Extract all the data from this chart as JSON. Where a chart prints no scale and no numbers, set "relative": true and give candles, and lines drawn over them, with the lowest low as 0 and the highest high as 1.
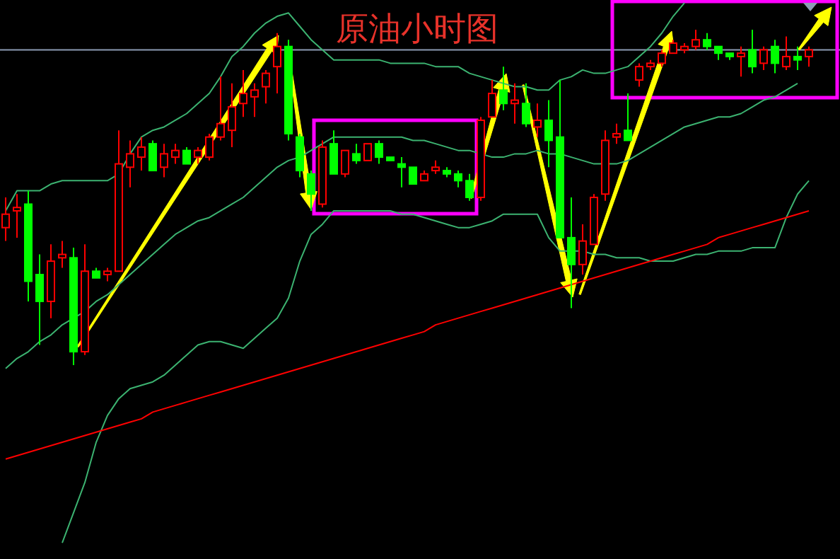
{
  "chart_data": {
    "type": "candlestick",
    "title": "原油小时图",
    "relative": true,
    "categories": [
      null,
      null,
      null,
      null,
      null,
      null,
      null,
      null,
      null,
      null,
      null,
      null,
      null,
      null,
      null,
      null,
      null,
      null,
      null,
      null,
      null,
      null,
      null,
      null,
      null,
      null,
      null,
      null,
      null,
      null,
      null,
      null,
      null,
      null,
      null,
      null,
      null,
      null,
      null,
      null,
      null,
      null,
      null,
      null,
      null,
      null,
      null,
      null,
      null,
      null,
      null,
      null,
      null,
      null,
      null,
      null,
      null,
      null,
      null,
      null,
      null,
      null,
      null,
      null,
      null,
      null,
      null,
      null,
      null,
      null,
      null,
      null
    ],
    "ohlc": [
      [
        0.41,
        0.5,
        0.37,
        0.45
      ],
      [
        0.46,
        0.51,
        0.38,
        0.47
      ],
      [
        0.48,
        0.52,
        0.19,
        0.25
      ],
      [
        0.27,
        0.33,
        0.06,
        0.19
      ],
      [
        0.19,
        0.36,
        0.14,
        0.31
      ],
      [
        0.32,
        0.37,
        0.29,
        0.33
      ],
      [
        0.32,
        0.35,
        0,
        0.04
      ],
      [
        0.04,
        0.36,
        0.03,
        0.28
      ],
      [
        0.28,
        0.29,
        0.26,
        0.26
      ],
      [
        0.27,
        0.29,
        0.25,
        0.28
      ],
      [
        0.28,
        0.7,
        0.28,
        0.6
      ],
      [
        0.59,
        0.67,
        0.53,
        0.63
      ],
      [
        0.62,
        0.68,
        0.58,
        0.65
      ],
      [
        0.66,
        0.67,
        0.58,
        0.58
      ],
      [
        0.59,
        0.66,
        0.56,
        0.63
      ],
      [
        0.62,
        0.66,
        0.6,
        0.64
      ],
      [
        0.64,
        0.65,
        0.6,
        0.6
      ],
      [
        0.62,
        0.65,
        0.6,
        0.64
      ],
      [
        0.62,
        0.69,
        0.61,
        0.68
      ],
      [
        0.68,
        0.86,
        0.67,
        0.72
      ],
      [
        0.7,
        0.84,
        0.65,
        0.77
      ],
      [
        0.78,
        0.88,
        0.74,
        0.81
      ],
      [
        0.8,
        0.84,
        0.74,
        0.82
      ],
      [
        0.83,
        0.88,
        0.78,
        0.87
      ],
      [
        0.89,
        0.99,
        0.81,
        0.95
      ],
      [
        0.95,
        0.97,
        0.67,
        0.69
      ],
      [
        0.68,
        0.69,
        0.56,
        0.58
      ],
      [
        0.57,
        0.58,
        0.46,
        0.51
      ],
      [
        0.48,
        0.67,
        0.47,
        0.65
      ],
      [
        0.66,
        0.7,
        0.57,
        0.57
      ],
      [
        0.57,
        0.64,
        0.56,
        0.64
      ],
      [
        0.63,
        0.66,
        0.6,
        0.61
      ],
      [
        0.61,
        0.66,
        0.61,
        0.66
      ],
      [
        0.66,
        0.67,
        0.6,
        0.62
      ],
      [
        0.62,
        0.62,
        0.61,
        0.61
      ],
      [
        0.6,
        0.62,
        0.53,
        0.59
      ],
      [
        0.59,
        0.59,
        0.54,
        0.54
      ],
      [
        0.55,
        0.58,
        0.55,
        0.57
      ],
      [
        0.58,
        0.61,
        0.57,
        0.59
      ],
      [
        0.58,
        0.59,
        0.56,
        0.57
      ],
      [
        0.57,
        0.58,
        0.53,
        0.55
      ],
      [
        0.55,
        0.57,
        0.49,
        0.5
      ],
      [
        0.5,
        0.74,
        0.49,
        0.73
      ],
      [
        0.74,
        0.85,
        0.74,
        0.81
      ],
      [
        0.82,
        0.89,
        0.76,
        0.78
      ],
      [
        0.78,
        0.84,
        0.72,
        0.79
      ],
      [
        0.78,
        0.84,
        0.71,
        0.72
      ],
      [
        0.71,
        0.78,
        0.68,
        0.73
      ],
      [
        0.73,
        0.79,
        0.59,
        0.67
      ],
      [
        0.68,
        0.85,
        0.38,
        0.38
      ],
      [
        0.38,
        0.5,
        0.17,
        0.3
      ],
      [
        0.3,
        0.42,
        0.27,
        0.37
      ],
      [
        0.36,
        0.51,
        0.36,
        0.5
      ],
      [
        0.51,
        0.7,
        0.49,
        0.67
      ],
      [
        0.68,
        0.72,
        0.66,
        0.69
      ],
      [
        0.7,
        0.81,
        0.67,
        0.67
      ],
      [
        0.85,
        0.9,
        0.83,
        0.89
      ],
      [
        0.89,
        0.91,
        0.88,
        0.9
      ],
      [
        0.9,
        0.94,
        0.89,
        0.93
      ],
      [
        0.93,
        0.97,
        0.93,
        0.96
      ],
      [
        0.94,
        0.96,
        0.93,
        0.95
      ],
      [
        0.95,
        1,
        0.94,
        0.97
      ],
      [
        0.97,
        0.99,
        0.94,
        0.95
      ],
      [
        0.95,
        0.95,
        0.91,
        0.93
      ],
      [
        0.93,
        0.93,
        0.91,
        0.92
      ],
      [
        0.92,
        0.95,
        0.86,
        0.93
      ],
      [
        0.94,
        1,
        0.87,
        0.89
      ],
      [
        0.9,
        0.95,
        0.88,
        0.94
      ],
      [
        0.95,
        0.97,
        0.87,
        0.9
      ],
      [
        0.89,
        0.98,
        0.88,
        0.92
      ],
      [
        0.92,
        0.95,
        0.88,
        0.91
      ],
      [
        0.92,
        0.95,
        0.89,
        0.94
      ]
    ],
    "colors": [
      "#ff0000",
      "#ff0000",
      "#00ff00",
      "#00ff00",
      "#ff0000",
      "#ff0000",
      "#00ff00",
      "#ff0000",
      "#00ff00",
      "#ff0000",
      "#ff0000",
      "#ff0000",
      "#ff0000",
      "#00ff00",
      "#ff0000",
      "#ff0000",
      "#00ff00",
      "#ff0000",
      "#ff0000",
      "#ff0000",
      "#ff0000",
      "#ff0000",
      "#ff0000",
      "#ff0000",
      "#ff0000",
      "#00ff00",
      "#00ff00",
      "#00ff00",
      "#ff0000",
      "#00ff00",
      "#ff0000",
      "#00ff00",
      "#ff0000",
      "#00ff00",
      "#00ff00",
      "#00ff00",
      "#00ff00",
      "#ff0000",
      "#ff0000",
      "#00ff00",
      "#00ff00",
      "#00ff00",
      "#ff0000",
      "#ff0000",
      "#00ff00",
      "#ff0000",
      "#00ff00",
      "#ff0000",
      "#00ff00",
      "#00ff00",
      "#00ff00",
      "#ff0000",
      "#ff0000",
      "#ff0000",
      "#ff0000",
      "#00ff00",
      "#ff0000",
      "#ff0000",
      "#ff0000",
      "#ff0000",
      "#ff0000",
      "#ff0000",
      "#00ff00",
      "#00ff00",
      "#00ff00",
      "#ff0000",
      "#00ff00",
      "#ff0000",
      "#00ff00",
      "#ff0000",
      "#00ff00",
      "#ff0000"
    ],
    "series": [
      {
        "type": "line",
        "color": "#3cb371",
        "values": [
          0.46,
          0.52,
          0.52,
          0.52,
          0.54,
          0.55,
          0.55,
          0.55,
          0.55,
          0.55,
          0.57,
          0.63,
          0.68,
          0.7,
          0.71,
          0.73,
          0.75,
          0.78,
          0.81,
          0.86,
          0.92,
          0.95,
          0.99,
          1.02,
          1.04,
          1.05,
          1.01,
          0.97,
          0.94,
          0.91,
          0.91,
          0.91,
          0.91,
          0.91,
          0.9,
          0.9,
          0.9,
          0.9,
          0.89,
          0.89,
          0.89,
          0.87,
          0.86,
          0.85,
          0.84,
          0.83,
          0.83,
          0.82,
          0.82,
          0.85,
          0.86,
          0.88,
          0.87,
          0.87,
          0.88,
          0.89,
          0.92,
          0.95,
          0.99,
          1.04,
          1.08,
          null,
          null,
          null,
          null,
          null,
          null,
          null,
          null,
          null,
          null,
          null
        ]
      },
      {
        "type": "line",
        "color": "#3cb371",
        "values": [
          -0.01,
          0.02,
          0.04,
          0.07,
          0.09,
          0.12,
          0.14,
          0.16,
          0.19,
          0.21,
          0.24,
          0.27,
          0.3,
          0.33,
          0.36,
          0.39,
          0.41,
          0.43,
          0.44,
          0.46,
          0.48,
          0.5,
          0.53,
          0.56,
          0.59,
          0.61,
          0.62,
          0.64,
          0.66,
          0.68,
          0.68,
          0.68,
          0.68,
          0.68,
          0.68,
          0.68,
          0.67,
          0.67,
          0.66,
          0.65,
          0.64,
          0.64,
          0.63,
          0.62,
          0.62,
          0.63,
          0.63,
          0.64,
          0.63,
          0.63,
          0.62,
          0.61,
          0.6,
          0.6,
          0.6,
          0.61,
          0.63,
          0.65,
          0.67,
          0.69,
          0.71,
          0.72,
          0.73,
          0.74,
          0.74,
          0.75,
          0.77,
          0.79,
          0.8,
          0.82,
          0.84,
          null
        ]
      },
      {
        "type": "line",
        "color": "#3cb371",
        "values": [
          null,
          null,
          null,
          null,
          null,
          -0.53,
          -0.44,
          -0.35,
          -0.23,
          -0.15,
          -0.1,
          -0.07,
          -0.06,
          -0.05,
          -0.03,
          0.0,
          0.03,
          0.06,
          0.07,
          0.07,
          0.06,
          0.05,
          0.08,
          0.11,
          0.14,
          0.2,
          0.31,
          0.39,
          0.42,
          0.46,
          0.46,
          0.46,
          0.46,
          0.46,
          0.46,
          0.45,
          0.45,
          0.44,
          0.43,
          0.42,
          0.41,
          0.41,
          0.42,
          0.43,
          0.45,
          0.45,
          0.45,
          0.45,
          0.38,
          0.34,
          0.34,
          0.34,
          0.33,
          0.33,
          0.32,
          0.32,
          0.32,
          0.31,
          0.31,
          0.31,
          0.32,
          0.33,
          0.33,
          0.34,
          0.34,
          0.34,
          0.35,
          0.35,
          0.35,
          0.44,
          0.51,
          0.55
        ]
      },
      {
        "type": "line",
        "color": "#ff0000",
        "values": [
          -0.28,
          -0.27,
          -0.26,
          -0.25,
          -0.24,
          -0.23,
          -0.22,
          -0.21,
          -0.2,
          -0.19,
          -0.18,
          -0.17,
          -0.16,
          -0.14,
          -0.13,
          -0.12,
          -0.11,
          -0.1,
          -0.09,
          -0.08,
          -0.07,
          -0.06,
          -0.05,
          -0.04,
          -0.03,
          -0.02,
          -0.01,
          0.0,
          0.01,
          0.02,
          0.03,
          0.04,
          0.05,
          0.06,
          0.07,
          0.08,
          0.09,
          0.1,
          0.12,
          0.13,
          0.14,
          0.15,
          0.16,
          0.17,
          0.18,
          0.19,
          0.2,
          0.21,
          0.22,
          0.23,
          0.24,
          0.25,
          0.26,
          0.27,
          0.28,
          0.29,
          0.3,
          0.31,
          0.32,
          0.33,
          0.34,
          0.35,
          0.36,
          0.38,
          0.39,
          0.4,
          0.41,
          0.42,
          0.43,
          0.44,
          0.45,
          0.46
        ]
      }
    ],
    "ref_lines": [
      {
        "axis": "y",
        "value": 0.94,
        "color": "#8c9bb4"
      }
    ]
  }
}
